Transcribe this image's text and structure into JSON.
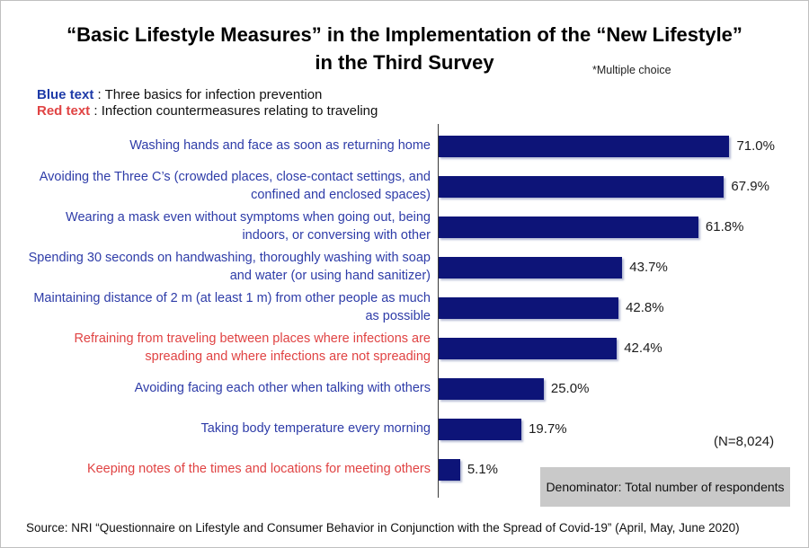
{
  "title": {
    "line1": "“Basic Lifestyle Measures” in the Implementation of the “New Lifestyle”",
    "line2": "in the Third Survey",
    "note": "*Multiple choice"
  },
  "legend": [
    {
      "label": "Blue text",
      "desc": ": Three basics for infection prevention",
      "color": "#1e3ba8"
    },
    {
      "label": "Red text",
      "desc": ": Infection countermeasures relating to traveling",
      "color": "#e04444"
    }
  ],
  "colors": {
    "bar": "#0d1478",
    "label_blue": "#2e3ca8",
    "label_red": "#e04343",
    "axis": "#3a3a3a",
    "note_box_bg": "#c9c9c9"
  },
  "chart_data": {
    "type": "bar",
    "orientation": "horizontal",
    "title": "“Basic Lifestyle Measures” in the Implementation of the “New Lifestyle” in the Third Survey",
    "categories": [
      "Washing hands and face as soon as returning home",
      "Avoiding the Three C’s (crowded places, close-contact settings, and confined and enclosed spaces)",
      "Wearing a mask even without symptoms when going out, being indoors, or conversing with other",
      "Spending 30 seconds on handwashing, thoroughly washing with soap and water (or using hand sanitizer)",
      "Maintaining distance of 2 m (at least 1 m) from other people as much as possible",
      "Refraining from traveling between places where infections are spreading and where infections are not spreading",
      "Avoiding facing each other when talking with others",
      "Taking body temperature every morning",
      "Keeping notes of the times and locations for meeting others"
    ],
    "values": [
      71.0,
      67.9,
      61.8,
      43.7,
      42.8,
      42.4,
      25.0,
      19.7,
      5.1
    ],
    "value_labels": [
      "71.0%",
      "67.9%",
      "61.8%",
      "43.7%",
      "42.8%",
      "42.4%",
      "25.0%",
      "19.7%",
      "5.1%"
    ],
    "category_colors": [
      "blue",
      "blue",
      "blue",
      "blue",
      "blue",
      "red",
      "blue",
      "blue",
      "red"
    ],
    "xlim": [
      0,
      80
    ],
    "grid": false,
    "legend_position": "none",
    "n": "(N=8,024)"
  },
  "annotations": {
    "n_label": "(N=8,024)",
    "denominator_note": "Denominator: Total number of respondents"
  },
  "source": "Source: NRI “Questionnaire on Lifestyle and Consumer Behavior in Conjunction with the Spread of Covid-19” (April, May, June 2020)"
}
